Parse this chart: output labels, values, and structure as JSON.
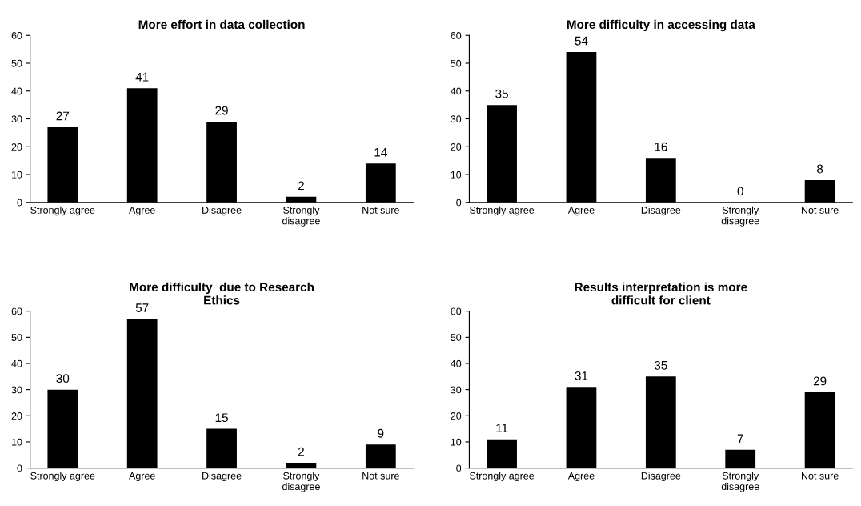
{
  "chart_data": [
    {
      "type": "bar",
      "title": "More effort in data collection",
      "categories": [
        "Strongly agree",
        "Agree",
        "Disagree",
        "Strongly\ndisagree",
        "Not sure"
      ],
      "values": [
        27,
        41,
        29,
        2,
        14
      ],
      "color": "#000000",
      "ylim": [
        0,
        60
      ],
      "yticks": [
        0,
        10,
        20,
        30,
        40,
        50,
        60
      ],
      "data_labels": true,
      "grid": false
    },
    {
      "type": "bar",
      "title": "More difficulty in accessing data",
      "categories": [
        "Strongly agree",
        "Agree",
        "Disagree",
        "Strongly\ndisagree",
        "Not sure"
      ],
      "values": [
        35,
        54,
        16,
        0,
        8
      ],
      "color": "#000000",
      "ylim": [
        0,
        60
      ],
      "yticks": [
        0,
        10,
        20,
        30,
        40,
        50,
        60
      ],
      "data_labels": true,
      "grid": false
    },
    {
      "type": "bar",
      "title": "More difficulty  due to Research\nEthics",
      "categories": [
        "Strongly agree",
        "Agree",
        "Disagree",
        "Strongly\ndisagree",
        "Not sure"
      ],
      "values": [
        30,
        57,
        15,
        2,
        9
      ],
      "color": "#000000",
      "ylim": [
        0,
        60
      ],
      "yticks": [
        0,
        10,
        20,
        30,
        40,
        50,
        60
      ],
      "data_labels": true,
      "grid": false
    },
    {
      "type": "bar",
      "title": "Results interpretation is more\ndifficult for client",
      "categories": [
        "Strongly agree",
        "Agree",
        "Disagree",
        "Strongly\ndisagree",
        "Not sure"
      ],
      "values": [
        11,
        31,
        35,
        7,
        29
      ],
      "color": "#000000",
      "ylim": [
        0,
        60
      ],
      "yticks": [
        0,
        10,
        20,
        30,
        40,
        50,
        60
      ],
      "data_labels": true,
      "grid": false
    }
  ]
}
